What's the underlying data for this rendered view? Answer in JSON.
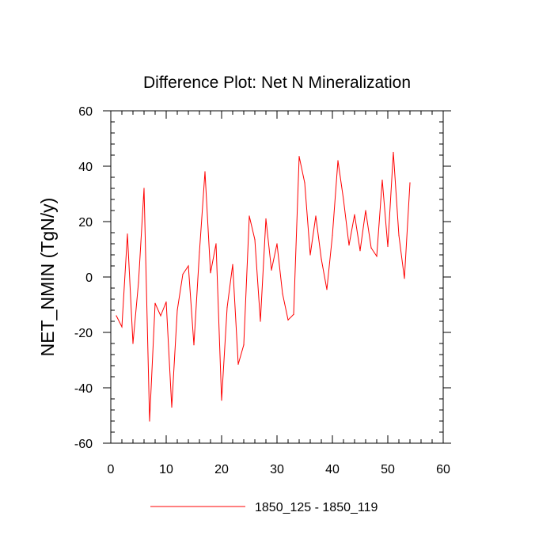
{
  "chart_data": {
    "type": "line",
    "title": "Difference Plot: Net N Mineralization",
    "xlabel": "",
    "ylabel": "NET_NMIN  (TgN/y)",
    "xlim": [
      0,
      60
    ],
    "ylim": [
      -60,
      60
    ],
    "x_ticks": [
      0,
      10,
      20,
      30,
      40,
      50,
      60
    ],
    "x_tick_labels": [
      "0",
      "10",
      "20",
      "30",
      "40",
      "50",
      "60"
    ],
    "y_ticks": [
      -60,
      -40,
      -20,
      0,
      20,
      40,
      60
    ],
    "y_tick_labels": [
      "-60",
      "-40",
      "-20",
      "0",
      "20",
      "40",
      "60"
    ],
    "grid": false,
    "legend_position": "bottom-center",
    "series": [
      {
        "name": "1850_125 - 1850_119",
        "color": "#ff0000",
        "x": [
          1,
          2,
          3,
          4,
          5,
          6,
          7,
          8,
          9,
          10,
          11,
          12,
          13,
          14,
          15,
          16,
          17,
          18,
          19,
          20,
          21,
          22,
          23,
          24,
          25,
          26,
          27,
          28,
          29,
          30,
          31,
          32,
          33,
          34,
          35,
          36,
          37,
          38,
          39,
          40,
          41,
          42,
          43,
          44,
          45,
          46,
          47,
          48,
          49,
          50,
          51,
          52,
          53,
          54
        ],
        "values": [
          -14,
          -18,
          15.5,
          -24,
          -2,
          32,
          -52,
          -9.5,
          -14,
          -9,
          -47,
          -12,
          1,
          4,
          -24.5,
          9,
          38,
          1.5,
          12,
          -44.5,
          -11,
          4.5,
          -31.5,
          -24.5,
          22,
          13.5,
          -16,
          21,
          2.5,
          12,
          -6,
          -15.5,
          -13.5,
          43.5,
          34,
          8,
          22,
          6.5,
          -4.5,
          15,
          42,
          28,
          11.5,
          22.5,
          9.5,
          24,
          10.5,
          7.5,
          35,
          11,
          45,
          15,
          -0.5,
          34
        ]
      }
    ]
  }
}
